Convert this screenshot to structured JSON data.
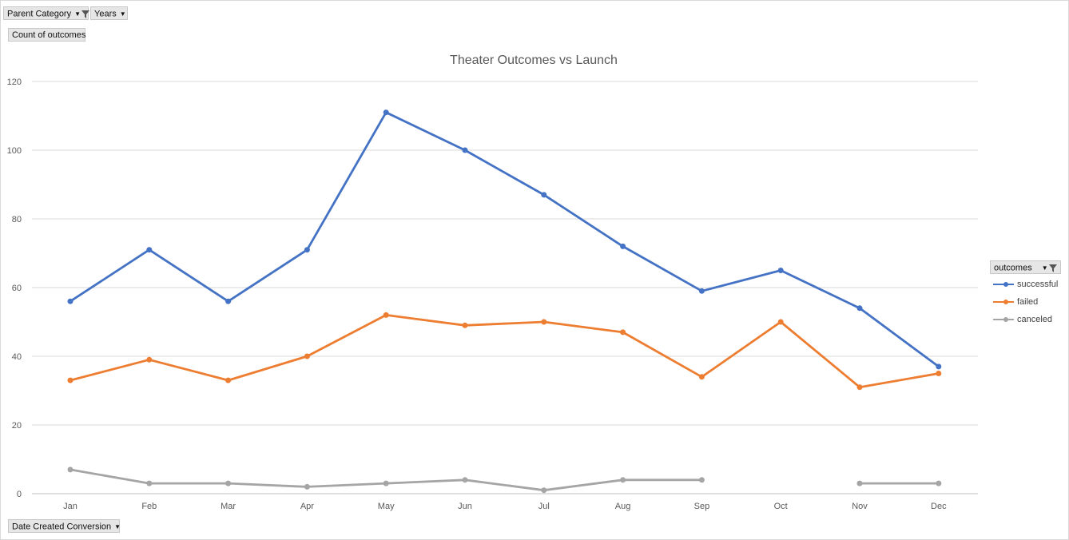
{
  "pivot_fields": {
    "parent_category": "Parent Category",
    "years": "Years",
    "values_field": "Count of outcomes",
    "axis_field": "Date Created Conversion",
    "legend_field": "outcomes"
  },
  "icons": {
    "dropdown": "chevron-down-icon",
    "filter": "filter-icon"
  },
  "chart_data": {
    "type": "line",
    "title": "Theater Outcomes vs Launch",
    "categories": [
      "Jan",
      "Feb",
      "Mar",
      "Apr",
      "May",
      "Jun",
      "Jul",
      "Aug",
      "Sep",
      "Oct",
      "Nov",
      "Dec"
    ],
    "y_ticks": [
      "0",
      "20",
      "40",
      "60",
      "80",
      "100",
      "120"
    ],
    "ylim": [
      0,
      120
    ],
    "grid": "horizontal",
    "legend_position": "right",
    "series": [
      {
        "name": "successful",
        "color": "#4472c4",
        "values": [
          56,
          71,
          56,
          71,
          111,
          100,
          87,
          72,
          59,
          65,
          54,
          37
        ]
      },
      {
        "name": "failed",
        "color": "#ed7d31",
        "values": [
          33,
          39,
          33,
          40,
          52,
          49,
          50,
          47,
          34,
          50,
          31,
          35
        ]
      },
      {
        "name": "canceled",
        "color": "#a5a5a5",
        "values": [
          7,
          3,
          3,
          2,
          3,
          4,
          1,
          4,
          4,
          null,
          3,
          3
        ]
      }
    ]
  }
}
